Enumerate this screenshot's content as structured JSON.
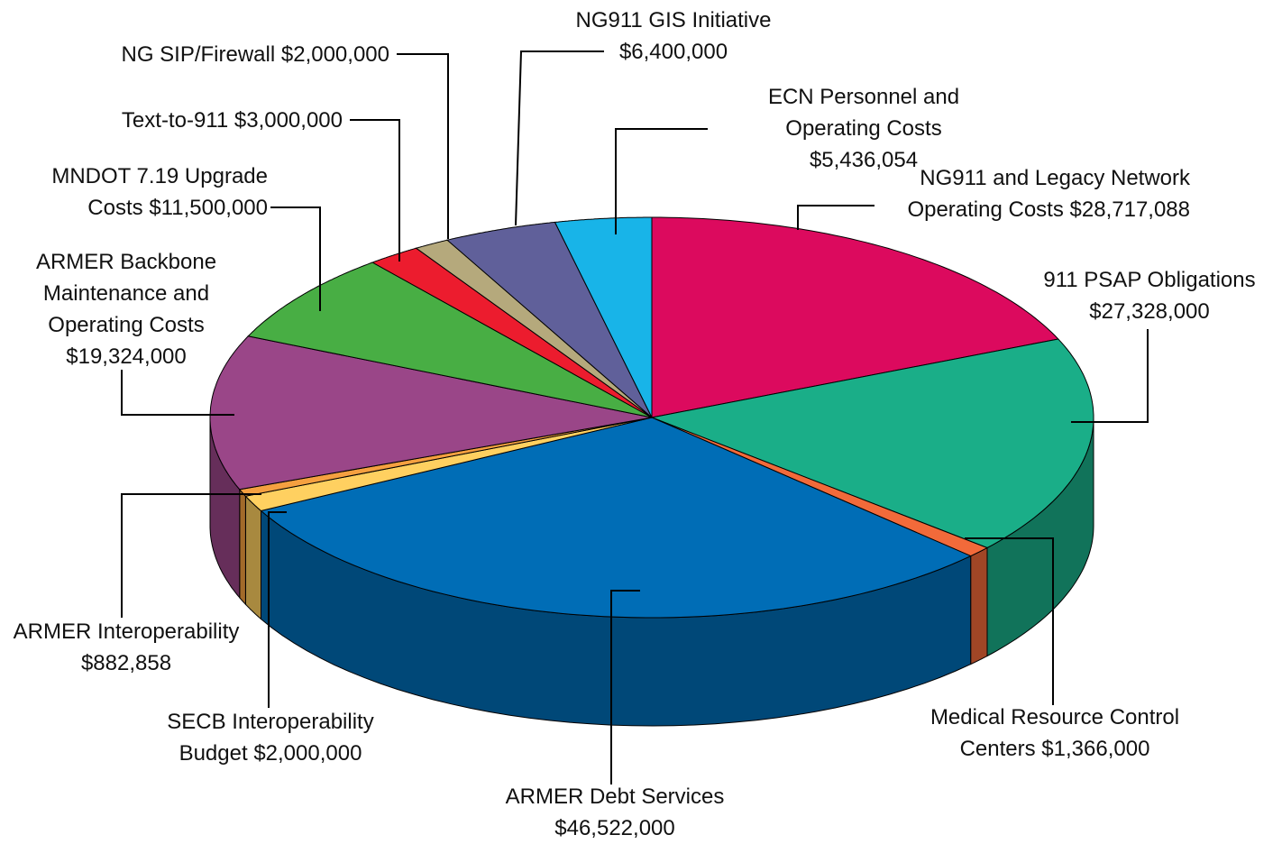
{
  "chart_data": {
    "type": "pie3d",
    "categories": [
      "NG911 and Legacy Network Operating Costs",
      "911 PSAP Obligations",
      "Medical Resource Control Centers",
      "ARMER Debt Services",
      "SECB Interoperability Budget",
      "ARMER Interoperability",
      "ARMER Backbone Maintenance and Operating Costs",
      "MNDOT 7.19 Upgrade Costs",
      "Text-to-911",
      "NG SIP/Firewall",
      "NG911 GIS Initiative",
      "ECN Personnel and Operating Costs"
    ],
    "values": [
      28717088,
      27328000,
      1366000,
      46522000,
      2000000,
      882858,
      19324000,
      11500000,
      3000000,
      2000000,
      6400000,
      5436054
    ],
    "value_labels": [
      "$28,717,088",
      "$27,328,000",
      "$1,366,000",
      "$46,522,000",
      "$2,000,000",
      "$882,858",
      "$19,324,000",
      "$11,500,000",
      "$3,000,000",
      "$2,000,000",
      "$6,400,000",
      "$5,436,054"
    ],
    "colors": [
      "#dc0a5e",
      "#1aae88",
      "#f26a3a",
      "#006db6",
      "#ffd060",
      "#f5a040",
      "#9a4688",
      "#48ae44",
      "#ec1c2e",
      "#b5a97c",
      "#60609a",
      "#18b4e8"
    ]
  }
}
